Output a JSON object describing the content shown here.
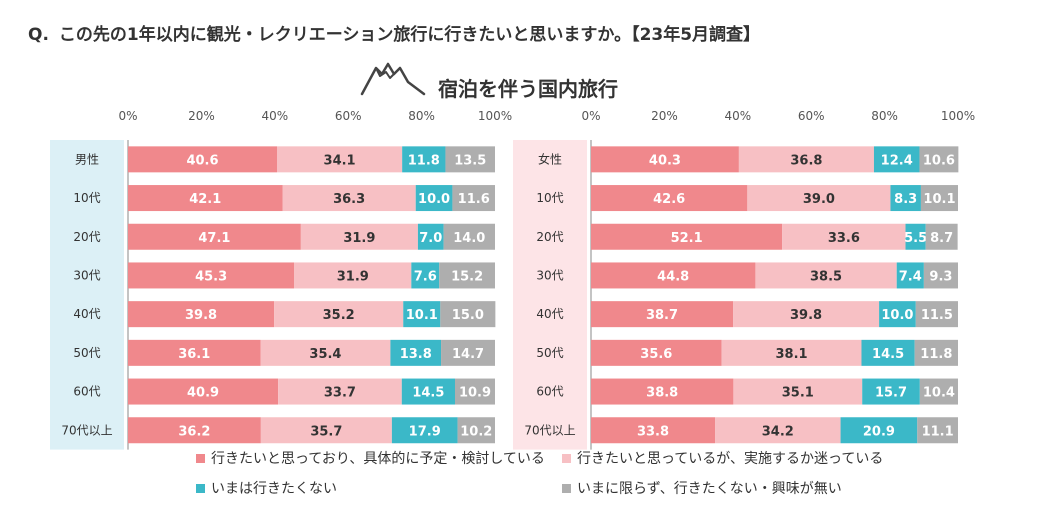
{
  "header": {
    "q_mark": "Q.",
    "question": "この先の1年以内に観光・レクリエーション旅行に行きたいと思いますか。【23年5月調査】",
    "subtitle": "宿泊を伴う国内旅行"
  },
  "icons": {
    "title_icon": "mountain-icon"
  },
  "colors": {
    "series": [
      "#f0888c",
      "#f7c0c4",
      "#3bb8c8",
      "#aeaeae"
    ],
    "male_panel": "#dcf0f6",
    "female_panel": "#fde4e7",
    "label_dark": "#333333",
    "label_light": "#ffffff"
  },
  "chart_data": [
    {
      "type": "bar",
      "orientation": "horizontal",
      "stacked": true,
      "categories": [
        "男性",
        "10代",
        "20代",
        "30代",
        "40代",
        "50代",
        "60代",
        "70代以上"
      ],
      "series": [
        {
          "name": "行きたいと思っており、具体的に予定・検討している",
          "values": [
            40.6,
            42.1,
            47.1,
            45.3,
            39.8,
            36.1,
            40.9,
            36.2
          ]
        },
        {
          "name": "行きたいと思っているが、実施するか迷っている",
          "values": [
            34.1,
            36.3,
            31.9,
            31.9,
            35.2,
            35.4,
            33.7,
            35.7
          ]
        },
        {
          "name": "いまは行きたくない",
          "values": [
            11.8,
            10.0,
            7.0,
            7.6,
            10.1,
            13.8,
            14.5,
            17.9
          ]
        },
        {
          "name": "いまに限らず、行きたくない・興味が無い",
          "values": [
            13.5,
            11.6,
            14.0,
            15.2,
            15.0,
            14.7,
            10.9,
            10.2
          ]
        }
      ],
      "xlim": [
        0,
        100
      ],
      "xticks": [
        "0%",
        "20%",
        "40%",
        "60%",
        "80%",
        "100%"
      ]
    },
    {
      "type": "bar",
      "orientation": "horizontal",
      "stacked": true,
      "categories": [
        "女性",
        "10代",
        "20代",
        "30代",
        "40代",
        "50代",
        "60代",
        "70代以上"
      ],
      "series": [
        {
          "name": "行きたいと思っており、具体的に予定・検討している",
          "values": [
            40.3,
            42.6,
            52.1,
            44.8,
            38.7,
            35.6,
            38.8,
            33.8
          ]
        },
        {
          "name": "行きたいと思っているが、実施するか迷っている",
          "values": [
            36.8,
            39.0,
            33.6,
            38.5,
            39.8,
            38.1,
            35.1,
            34.2
          ]
        },
        {
          "name": "いまは行きたくない",
          "values": [
            12.4,
            8.3,
            5.5,
            7.4,
            10.0,
            14.5,
            15.7,
            20.9
          ]
        },
        {
          "name": "いまに限らず、行きたくない・興味が無い",
          "values": [
            10.6,
            10.1,
            8.7,
            9.3,
            11.5,
            11.8,
            10.4,
            11.1
          ]
        }
      ],
      "xlim": [
        0,
        100
      ],
      "xticks": [
        "0%",
        "20%",
        "40%",
        "60%",
        "80%",
        "100%"
      ]
    }
  ],
  "legend": [
    "行きたいと思っており、具体的に予定・検討している",
    "行きたいと思っているが、実施するか迷っている",
    "いまは行きたくない",
    "いまに限らず、行きたくない・興味が無い"
  ]
}
